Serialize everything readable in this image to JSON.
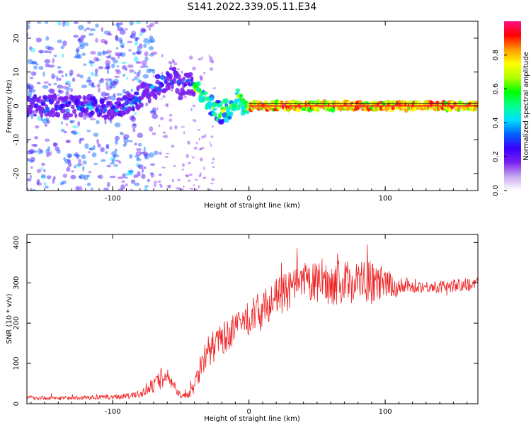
{
  "figure": {
    "title": "S141.2022.339.05.11.E34"
  },
  "chart_data": [
    {
      "type": "heatmap",
      "xlabel": "Height of straight line (km)",
      "ylabel": "Frequency (Hz)",
      "xlim": [
        -163,
        168
      ],
      "ylim": [
        -25,
        25
      ],
      "xticks": [
        -100,
        0,
        100
      ],
      "xtick_labels": [
        "-100",
        "0",
        "100"
      ],
      "yticks": [
        -20,
        -10,
        0,
        10,
        20
      ],
      "ytick_labels": [
        "-20",
        "-10",
        "0",
        "10",
        "20"
      ],
      "colorbar": {
        "label": "Normalized spectral amplitude",
        "range": [
          0,
          1
        ],
        "ticks": [
          0,
          0.2,
          0.4,
          0.6,
          0.8
        ],
        "tick_labels": [
          "0.0",
          "0.2",
          "0.4",
          "0.6",
          "0.8"
        ],
        "colormap": [
          "#ffffff",
          "#c8a8f0",
          "#7a1fef",
          "#3a00ff",
          "#0060ff",
          "#00e0ff",
          "#00ff90",
          "#00ff00",
          "#b0ff00",
          "#ffff00",
          "#ff9900",
          "#ff0000",
          "#ff1080"
        ]
      },
      "ridge_x": [
        -163,
        -140,
        -120,
        -100,
        -90,
        -80,
        -70,
        -60,
        -55,
        -50,
        -45,
        -40,
        -35,
        -30,
        -25,
        -20,
        -15,
        -10,
        -8,
        -5,
        -2,
        0,
        20,
        40,
        60,
        80,
        100,
        120,
        140,
        168
      ],
      "ridge_y": [
        0,
        0,
        0,
        -1,
        0,
        3,
        5,
        8,
        9,
        5,
        7,
        6,
        3,
        1,
        -1,
        -2,
        -1,
        1,
        2,
        1,
        0,
        0,
        0,
        0,
        0,
        0,
        0,
        0,
        0,
        0
      ]
    },
    {
      "type": "line",
      "xlabel": "Height of straight line (km)",
      "ylabel": "SNR (10 * v/v)",
      "xlim": [
        -163,
        168
      ],
      "ylim": [
        0,
        420
      ],
      "xticks": [
        -100,
        0,
        100
      ],
      "xtick_labels": [
        "-100",
        "0",
        "100"
      ],
      "yticks": [
        0,
        100,
        200,
        300,
        400
      ],
      "ytick_labels": [
        "0",
        "100",
        "200",
        "300",
        "400"
      ],
      "color": "#ee2222",
      "series": [
        {
          "x": [
            -163,
            -140,
            -120,
            -100,
            -85,
            -75,
            -70,
            -65,
            -60,
            -55,
            -50,
            -45,
            -40,
            -35,
            -30,
            -25,
            -20,
            -10,
            0,
            10,
            20,
            30,
            40,
            50,
            60,
            70,
            80,
            90,
            100,
            110,
            120,
            140,
            168
          ],
          "values": [
            15,
            14,
            15,
            17,
            20,
            30,
            45,
            60,
            70,
            40,
            20,
            20,
            50,
            100,
            130,
            145,
            160,
            185,
            215,
            235,
            265,
            280,
            300,
            300,
            300,
            300,
            305,
            300,
            295,
            290,
            290,
            290,
            298
          ],
          "noise": [
            5,
            5,
            5,
            6,
            8,
            12,
            18,
            25,
            22,
            12,
            6,
            8,
            25,
            35,
            40,
            40,
            40,
            40,
            45,
            45,
            45,
            50,
            50,
            50,
            55,
            55,
            55,
            55,
            40,
            25,
            15,
            15,
            18
          ]
        }
      ]
    }
  ]
}
